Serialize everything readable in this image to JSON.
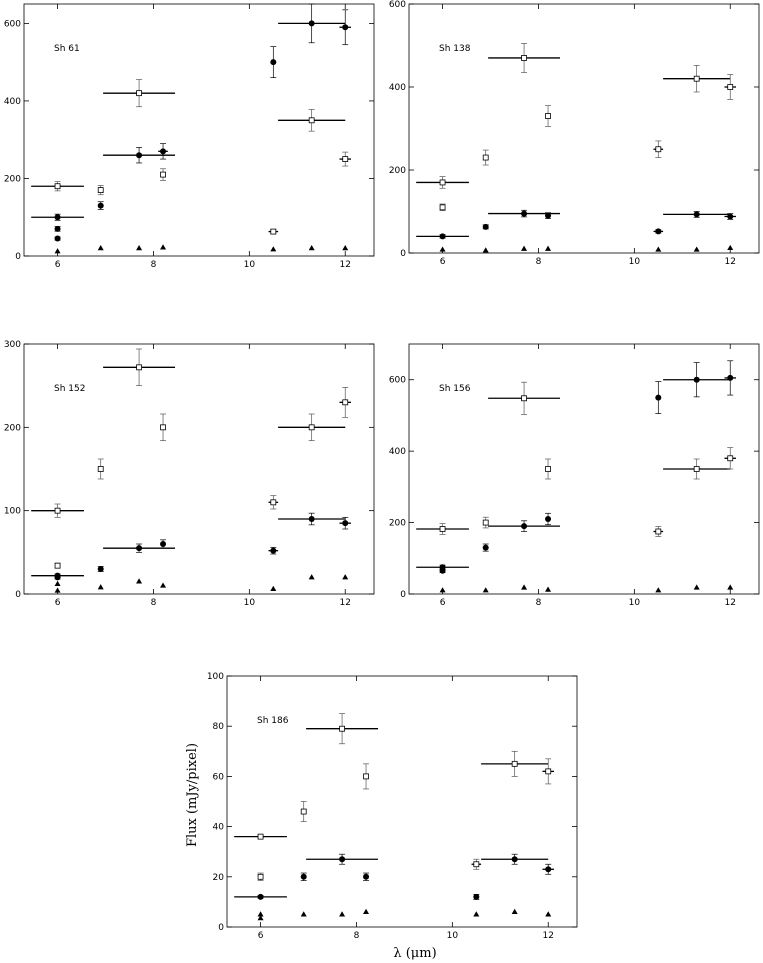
{
  "figure": {
    "ylabel": "Flux (mJy/pixel)",
    "xlabel": "λ (μm)"
  },
  "chart_data": [
    {
      "type": "scatter",
      "title": "Sh 61",
      "xlim": [
        5.3,
        12.6
      ],
      "ylim": [
        0,
        650
      ],
      "xticks": [
        6,
        8,
        10,
        12
      ],
      "yticks": [
        0,
        200,
        400,
        600
      ],
      "series": [
        {
          "marker": "open-square",
          "points": [
            {
              "x": 6.0,
              "y": 180,
              "xerr": 0.55,
              "yerr": 12
            },
            {
              "x": 6.9,
              "y": 170,
              "xerr": 0.05,
              "yerr": 12
            },
            {
              "x": 7.7,
              "y": 420,
              "xerr": 0.75,
              "yerr": 35
            },
            {
              "x": 8.2,
              "y": 210,
              "xerr": 0.05,
              "yerr": 15
            },
            {
              "x": 10.5,
              "y": 63,
              "xerr": 0.1,
              "yerr": 5
            },
            {
              "x": 11.3,
              "y": 350,
              "xerr": 0.7,
              "yerr": 28
            },
            {
              "x": 12.0,
              "y": 250,
              "xerr": 0.12,
              "yerr": 18
            }
          ]
        },
        {
          "marker": "filled-circle",
          "points": [
            {
              "x": 6.0,
              "y": 100,
              "xerr": 0.55,
              "yerr": 8
            },
            {
              "x": 6.0,
              "y": 70,
              "xerr": 0.05,
              "yerr": 6
            },
            {
              "x": 6.0,
              "y": 45,
              "xerr": 0.05,
              "yerr": 4
            },
            {
              "x": 6.9,
              "y": 130,
              "xerr": 0.05,
              "yerr": 10
            },
            {
              "x": 7.7,
              "y": 260,
              "xerr": 0.75,
              "yerr": 20
            },
            {
              "x": 8.2,
              "y": 270,
              "xerr": 0.1,
              "yerr": 20
            },
            {
              "x": 10.5,
              "y": 500,
              "xerr": 0.05,
              "yerr": 40
            },
            {
              "x": 11.3,
              "y": 600,
              "xerr": 0.7,
              "yerr": 50
            },
            {
              "x": 12.0,
              "y": 590,
              "xerr": 0.12,
              "yerr": 45
            }
          ]
        },
        {
          "marker": "filled-triangle",
          "points": [
            {
              "x": 6.0,
              "y": 12
            },
            {
              "x": 6.9,
              "y": 20
            },
            {
              "x": 7.7,
              "y": 20
            },
            {
              "x": 8.2,
              "y": 22
            },
            {
              "x": 10.5,
              "y": 17
            },
            {
              "x": 11.3,
              "y": 20
            },
            {
              "x": 12.0,
              "y": 20
            }
          ]
        }
      ]
    },
    {
      "type": "scatter",
      "title": "Sh 138",
      "xlim": [
        5.3,
        12.6
      ],
      "ylim": [
        0,
        600
      ],
      "xticks": [
        6,
        8,
        10,
        12
      ],
      "yticks": [
        0,
        200,
        400,
        600
      ],
      "series": [
        {
          "marker": "open-square",
          "points": [
            {
              "x": 6.0,
              "y": 170,
              "xerr": 0.55,
              "yerr": 14
            },
            {
              "x": 6.0,
              "y": 110,
              "xerr": 0.05,
              "yerr": 8
            },
            {
              "x": 6.9,
              "y": 230,
              "xerr": 0.05,
              "yerr": 18
            },
            {
              "x": 7.7,
              "y": 470,
              "xerr": 0.75,
              "yerr": 35
            },
            {
              "x": 8.2,
              "y": 330,
              "xerr": 0.05,
              "yerr": 25
            },
            {
              "x": 10.5,
              "y": 250,
              "xerr": 0.1,
              "yerr": 20
            },
            {
              "x": 11.3,
              "y": 420,
              "xerr": 0.7,
              "yerr": 32
            },
            {
              "x": 12.0,
              "y": 400,
              "xerr": 0.12,
              "yerr": 30
            }
          ]
        },
        {
          "marker": "filled-circle",
          "points": [
            {
              "x": 6.0,
              "y": 40,
              "xerr": 0.55,
              "yerr": 4
            },
            {
              "x": 6.9,
              "y": 63,
              "xerr": 0.05,
              "yerr": 5
            },
            {
              "x": 7.7,
              "y": 95,
              "xerr": 0.75,
              "yerr": 8
            },
            {
              "x": 8.2,
              "y": 90,
              "xerr": 0.05,
              "yerr": 7
            },
            {
              "x": 10.5,
              "y": 52,
              "xerr": 0.1,
              "yerr": 4
            },
            {
              "x": 11.3,
              "y": 93,
              "xerr": 0.7,
              "yerr": 7
            },
            {
              "x": 12.0,
              "y": 88,
              "xerr": 0.12,
              "yerr": 7
            }
          ]
        },
        {
          "marker": "filled-triangle",
          "points": [
            {
              "x": 6.0,
              "y": 8
            },
            {
              "x": 6.9,
              "y": 6
            },
            {
              "x": 7.7,
              "y": 10
            },
            {
              "x": 8.2,
              "y": 10
            },
            {
              "x": 10.5,
              "y": 8
            },
            {
              "x": 11.3,
              "y": 8
            },
            {
              "x": 12.0,
              "y": 12
            }
          ]
        }
      ]
    },
    {
      "type": "scatter",
      "title": "Sh 152",
      "xlim": [
        5.3,
        12.6
      ],
      "ylim": [
        0,
        300
      ],
      "xticks": [
        6,
        8,
        10,
        12
      ],
      "yticks": [
        0,
        100,
        200,
        300
      ],
      "series": [
        {
          "marker": "open-square",
          "points": [
            {
              "x": 6.0,
              "y": 100,
              "xerr": 0.55,
              "yerr": 8
            },
            {
              "x": 6.0,
              "y": 34,
              "xerr": 0.05,
              "yerr": 3
            },
            {
              "x": 6.9,
              "y": 150,
              "xerr": 0.05,
              "yerr": 12
            },
            {
              "x": 7.7,
              "y": 272,
              "xerr": 0.75,
              "yerr": 22
            },
            {
              "x": 8.2,
              "y": 200,
              "xerr": 0.05,
              "yerr": 16
            },
            {
              "x": 10.5,
              "y": 110,
              "xerr": 0.1,
              "yerr": 8
            },
            {
              "x": 11.3,
              "y": 200,
              "xerr": 0.7,
              "yerr": 16
            },
            {
              "x": 12.0,
              "y": 230,
              "xerr": 0.12,
              "yerr": 18
            }
          ]
        },
        {
          "marker": "filled-circle",
          "points": [
            {
              "x": 6.0,
              "y": 22,
              "xerr": 0.55,
              "yerr": 2
            },
            {
              "x": 6.0,
              "y": 20,
              "xerr": 0.05,
              "yerr": 2
            },
            {
              "x": 6.9,
              "y": 30,
              "xerr": 0.05,
              "yerr": 3
            },
            {
              "x": 7.7,
              "y": 55,
              "xerr": 0.75,
              "yerr": 5
            },
            {
              "x": 8.2,
              "y": 60,
              "xerr": 0.05,
              "yerr": 5
            },
            {
              "x": 10.5,
              "y": 52,
              "xerr": 0.1,
              "yerr": 4
            },
            {
              "x": 11.3,
              "y": 90,
              "xerr": 0.7,
              "yerr": 7
            },
            {
              "x": 12.0,
              "y": 85,
              "xerr": 0.12,
              "yerr": 7
            }
          ]
        },
        {
          "marker": "filled-triangle",
          "points": [
            {
              "x": 6.0,
              "y": 4
            },
            {
              "x": 6.0,
              "y": 12
            },
            {
              "x": 6.9,
              "y": 8
            },
            {
              "x": 7.7,
              "y": 15
            },
            {
              "x": 8.2,
              "y": 10
            },
            {
              "x": 10.5,
              "y": 6
            },
            {
              "x": 11.3,
              "y": 20
            },
            {
              "x": 12.0,
              "y": 20
            }
          ]
        }
      ]
    },
    {
      "type": "scatter",
      "title": "Sh 156",
      "xlim": [
        5.3,
        12.6
      ],
      "ylim": [
        0,
        700
      ],
      "xticks": [
        6,
        8,
        10,
        12
      ],
      "yticks": [
        0,
        200,
        400,
        600
      ],
      "series": [
        {
          "marker": "open-square",
          "points": [
            {
              "x": 6.0,
              "y": 182,
              "xerr": 0.55,
              "yerr": 15
            },
            {
              "x": 6.9,
              "y": 200,
              "xerr": 0.05,
              "yerr": 15
            },
            {
              "x": 7.7,
              "y": 548,
              "xerr": 0.75,
              "yerr": 45
            },
            {
              "x": 8.2,
              "y": 350,
              "xerr": 0.05,
              "yerr": 28
            },
            {
              "x": 10.5,
              "y": 175,
              "xerr": 0.1,
              "yerr": 14
            },
            {
              "x": 11.3,
              "y": 350,
              "xerr": 0.7,
              "yerr": 28
            },
            {
              "x": 12.0,
              "y": 380,
              "xerr": 0.12,
              "yerr": 30
            }
          ]
        },
        {
          "marker": "filled-circle",
          "points": [
            {
              "x": 6.0,
              "y": 75,
              "xerr": 0.55,
              "yerr": 6
            },
            {
              "x": 6.0,
              "y": 65,
              "xerr": 0.05,
              "yerr": 5
            },
            {
              "x": 6.9,
              "y": 130,
              "xerr": 0.05,
              "yerr": 10
            },
            {
              "x": 7.7,
              "y": 190,
              "xerr": 0.75,
              "yerr": 15
            },
            {
              "x": 8.2,
              "y": 210,
              "xerr": 0.05,
              "yerr": 16
            },
            {
              "x": 10.5,
              "y": 550,
              "xerr": 0.05,
              "yerr": 45
            },
            {
              "x": 11.3,
              "y": 600,
              "xerr": 0.7,
              "yerr": 48
            },
            {
              "x": 12.0,
              "y": 605,
              "xerr": 0.12,
              "yerr": 48
            }
          ]
        },
        {
          "marker": "filled-triangle",
          "points": [
            {
              "x": 6.0,
              "y": 10
            },
            {
              "x": 6.9,
              "y": 10
            },
            {
              "x": 7.7,
              "y": 18
            },
            {
              "x": 8.2,
              "y": 12
            },
            {
              "x": 10.5,
              "y": 10
            },
            {
              "x": 11.3,
              "y": 18
            },
            {
              "x": 12.0,
              "y": 18
            }
          ]
        }
      ]
    },
    {
      "type": "scatter",
      "title": "Sh 186",
      "xlim": [
        5.3,
        12.6
      ],
      "ylim": [
        0,
        100
      ],
      "xticks": [
        6,
        8,
        10,
        12
      ],
      "yticks": [
        0,
        20,
        40,
        60,
        80,
        100
      ],
      "series": [
        {
          "marker": "open-square",
          "points": [
            {
              "x": 6.0,
              "y": 36,
              "xerr": 0.55,
              "yerr": 0.5
            },
            {
              "x": 6.0,
              "y": 20,
              "xerr": 0.05,
              "yerr": 1.5
            },
            {
              "x": 6.9,
              "y": 46,
              "xerr": 0.05,
              "yerr": 4
            },
            {
              "x": 7.7,
              "y": 79,
              "xerr": 0.75,
              "yerr": 6
            },
            {
              "x": 8.2,
              "y": 60,
              "xerr": 0.05,
              "yerr": 5
            },
            {
              "x": 10.5,
              "y": 25,
              "xerr": 0.1,
              "yerr": 2
            },
            {
              "x": 11.3,
              "y": 65,
              "xerr": 0.7,
              "yerr": 5
            },
            {
              "x": 12.0,
              "y": 62,
              "xerr": 0.12,
              "yerr": 5
            }
          ]
        },
        {
          "marker": "filled-circle",
          "points": [
            {
              "x": 6.0,
              "y": 12,
              "xerr": 0.55,
              "yerr": 0.5
            },
            {
              "x": 6.9,
              "y": 20,
              "xerr": 0.05,
              "yerr": 1.5
            },
            {
              "x": 7.7,
              "y": 27,
              "xerr": 0.75,
              "yerr": 2
            },
            {
              "x": 8.2,
              "y": 20,
              "xerr": 0.05,
              "yerr": 1.5
            },
            {
              "x": 10.5,
              "y": 12,
              "xerr": 0.05,
              "yerr": 1
            },
            {
              "x": 11.3,
              "y": 27,
              "xerr": 0.7,
              "yerr": 2
            },
            {
              "x": 12.0,
              "y": 23,
              "xerr": 0.12,
              "yerr": 2
            }
          ]
        },
        {
          "marker": "filled-triangle",
          "points": [
            {
              "x": 6.0,
              "y": 5
            },
            {
              "x": 6.0,
              "y": 3.5
            },
            {
              "x": 6.9,
              "y": 5
            },
            {
              "x": 7.7,
              "y": 5
            },
            {
              "x": 8.2,
              "y": 6
            },
            {
              "x": 10.5,
              "y": 5
            },
            {
              "x": 11.3,
              "y": 6
            },
            {
              "x": 12.0,
              "y": 5
            }
          ]
        }
      ]
    }
  ]
}
